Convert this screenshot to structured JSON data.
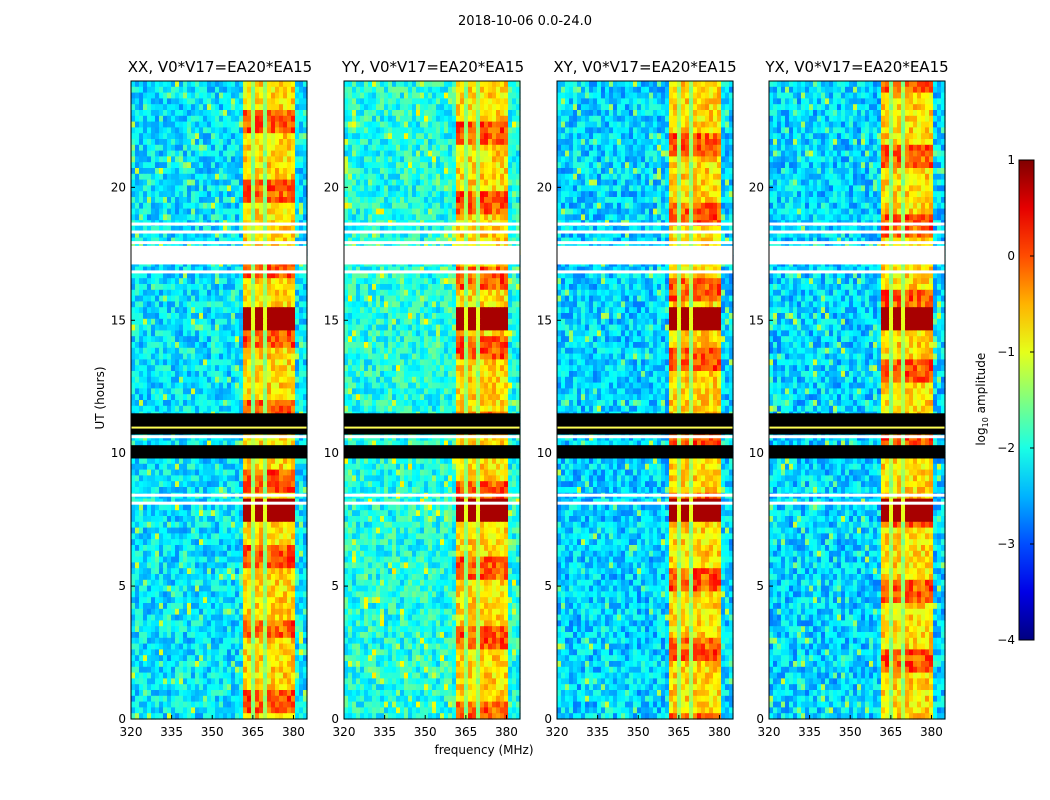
{
  "chart_data": {
    "type": "heatmap",
    "suptitle": "2018-10-06 0.0-24.0",
    "xlabel": "frequency (MHz)",
    "ylabel": "UT (hours)",
    "xlim": [
      320,
      385
    ],
    "ylim": [
      0,
      24
    ],
    "xticks": [
      "320",
      "335",
      "350",
      "365",
      "380"
    ],
    "yticks": [
      "0",
      "5",
      "10",
      "15",
      "20"
    ],
    "panels": [
      {
        "title": "XX, V0*V17=EA20*EA15"
      },
      {
        "title": "YY, V0*V17=EA20*EA15"
      },
      {
        "title": "XY, V0*V17=EA20*EA15"
      },
      {
        "title": "YX, V0*V17=EA20*EA15"
      }
    ],
    "colorbar": {
      "label": "log",
      "label_sub": "10",
      "label_rest": " amplitude",
      "range": [
        -4,
        1
      ],
      "ticks": [
        "1",
        "0",
        "−1",
        "−2",
        "−3",
        "−4"
      ],
      "colormap": "jet"
    },
    "bright_band_mhz": [
      361,
      381
    ],
    "flagged_gap_hours": [
      17.5,
      17.9,
      18.3,
      18.6,
      16.8,
      10.6,
      8.1,
      8.4
    ]
  }
}
